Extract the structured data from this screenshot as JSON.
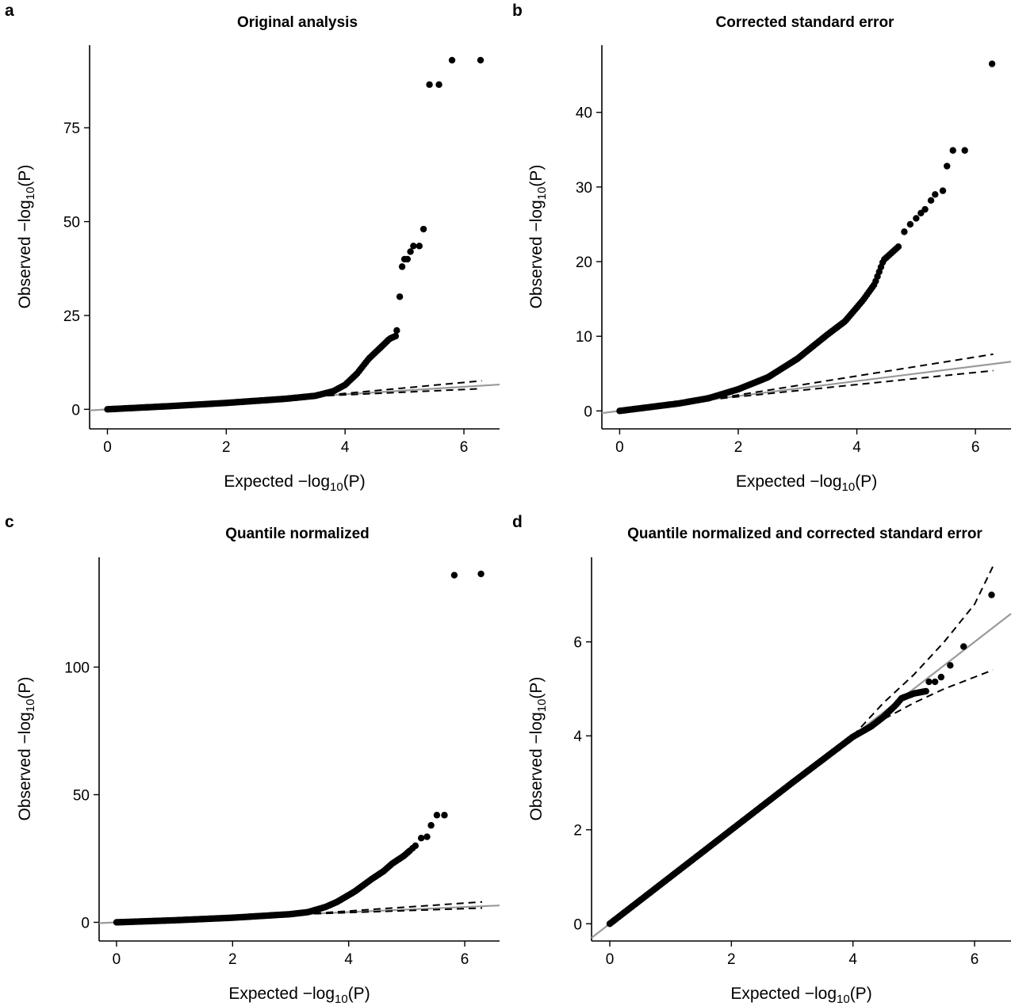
{
  "chart_data": [
    {
      "panel": "a",
      "type": "scatter",
      "title": "Original analysis",
      "xlabel": "Expected −log10(P)",
      "ylabel": "Observed −log10(P)",
      "xlim": [
        -0.3,
        6.6
      ],
      "ylim": [
        -5,
        97
      ],
      "xticks": [
        0,
        2,
        4,
        6
      ],
      "yticks": [
        0,
        25,
        50,
        75
      ],
      "reference_line": {
        "color": "#999999",
        "slope": 1
      },
      "confidence_band": {
        "style": "dashed",
        "upper": [
          [
            3.5,
            3.5
          ],
          [
            6.3,
            7.6
          ]
        ],
        "lower": [
          [
            3.5,
            3.5
          ],
          [
            6.3,
            5.5
          ]
        ]
      },
      "curve": [
        [
          0,
          0
        ],
        [
          1,
          0.8
        ],
        [
          2,
          1.7
        ],
        [
          3,
          2.8
        ],
        [
          3.5,
          3.6
        ],
        [
          3.8,
          4.8
        ],
        [
          4.0,
          6.5
        ],
        [
          4.2,
          9.5
        ],
        [
          4.4,
          13.5
        ],
        [
          4.6,
          16.5
        ],
        [
          4.75,
          18.8
        ],
        [
          4.85,
          19.5
        ]
      ],
      "points": [
        [
          4.87,
          21
        ],
        [
          4.92,
          30
        ],
        [
          4.96,
          38
        ],
        [
          5.0,
          40
        ],
        [
          5.05,
          40
        ],
        [
          5.1,
          42
        ],
        [
          5.15,
          43.5
        ],
        [
          5.25,
          43.5
        ],
        [
          5.32,
          48
        ],
        [
          5.42,
          86.5
        ],
        [
          5.58,
          86.5
        ],
        [
          5.8,
          93
        ],
        [
          6.28,
          93
        ]
      ]
    },
    {
      "panel": "b",
      "type": "scatter",
      "title": "Corrected standard error",
      "xlabel": "Expected −log10(P)",
      "ylabel": "Observed −log10(P)",
      "xlim": [
        -0.3,
        6.6
      ],
      "ylim": [
        -2.3,
        49
      ],
      "xticks": [
        0,
        2,
        4,
        6
      ],
      "yticks": [
        0,
        10,
        20,
        30,
        40
      ],
      "reference_line": {
        "color": "#999999",
        "slope": 1
      },
      "confidence_band": {
        "style": "dashed",
        "upper": [
          [
            1.5,
            1.5
          ],
          [
            6.3,
            7.6
          ]
        ],
        "lower": [
          [
            1.5,
            1.5
          ],
          [
            6.3,
            5.4
          ]
        ]
      },
      "curve": [
        [
          0,
          0
        ],
        [
          1,
          1
        ],
        [
          1.5,
          1.7
        ],
        [
          2,
          2.9
        ],
        [
          2.5,
          4.5
        ],
        [
          3,
          7
        ],
        [
          3.5,
          10.2
        ],
        [
          3.8,
          12
        ],
        [
          4.1,
          14.8
        ],
        [
          4.3,
          17
        ],
        [
          4.45,
          20.2
        ],
        [
          4.7,
          22
        ]
      ],
      "points": [
        [
          4.8,
          24
        ],
        [
          4.9,
          25
        ],
        [
          5.0,
          25.8
        ],
        [
          5.08,
          26.5
        ],
        [
          5.15,
          27
        ],
        [
          5.25,
          28.2
        ],
        [
          5.32,
          29
        ],
        [
          5.45,
          29.5
        ],
        [
          5.52,
          32.8
        ],
        [
          5.62,
          34.9
        ],
        [
          5.82,
          34.9
        ],
        [
          6.28,
          46.5
        ]
      ]
    },
    {
      "panel": "c",
      "type": "scatter",
      "title": "Quantile normalized",
      "xlabel": "Expected −log10(P)",
      "ylabel": "Observed −log10(P)",
      "xlim": [
        -0.3,
        6.6
      ],
      "ylim": [
        -7,
        143
      ],
      "xticks": [
        0,
        2,
        4,
        6
      ],
      "yticks": [
        0,
        50,
        100
      ],
      "reference_line": {
        "color": "#999999",
        "slope": 1
      },
      "confidence_band": {
        "style": "dashed",
        "upper": [
          [
            3.2,
            3.2
          ],
          [
            6.3,
            8
          ]
        ],
        "lower": [
          [
            3.2,
            3.2
          ],
          [
            6.3,
            5.6
          ]
        ]
      },
      "curve": [
        [
          0,
          0
        ],
        [
          1,
          0.8
        ],
        [
          2,
          1.8
        ],
        [
          3,
          3.2
        ],
        [
          3.3,
          4
        ],
        [
          3.6,
          6
        ],
        [
          3.8,
          8
        ],
        [
          4.1,
          12
        ],
        [
          4.4,
          17
        ],
        [
          4.6,
          20
        ],
        [
          4.75,
          23
        ],
        [
          4.95,
          26
        ],
        [
          5.05,
          28
        ]
      ],
      "points": [
        [
          5.1,
          29
        ],
        [
          5.15,
          30
        ],
        [
          5.25,
          33
        ],
        [
          5.35,
          33.5
        ],
        [
          5.42,
          38
        ],
        [
          5.52,
          42
        ],
        [
          5.65,
          42
        ],
        [
          5.82,
          136
        ],
        [
          6.28,
          136.5
        ]
      ]
    },
    {
      "panel": "d",
      "type": "scatter",
      "title": "Quantile normalized and corrected standard error",
      "xlabel": "Expected −log10(P)",
      "ylabel": "Observed −log10(P)",
      "xlim": [
        -0.3,
        6.6
      ],
      "ylim": [
        -0.35,
        7.8
      ],
      "xticks": [
        0,
        2,
        4,
        6
      ],
      "yticks": [
        0,
        2,
        4,
        6
      ],
      "reference_line": {
        "color": "#999999",
        "slope": 1
      },
      "confidence_band": {
        "style": "dashed",
        "upper": [
          [
            4.0,
            4.0
          ],
          [
            4.5,
            4.7
          ],
          [
            5.0,
            5.3
          ],
          [
            5.5,
            6.0
          ],
          [
            6.0,
            6.8
          ],
          [
            6.3,
            7.6
          ]
        ],
        "lower": [
          [
            4.0,
            4.0
          ],
          [
            4.5,
            4.35
          ],
          [
            5.0,
            4.7
          ],
          [
            5.5,
            5.0
          ],
          [
            6.0,
            5.25
          ],
          [
            6.3,
            5.4
          ]
        ]
      },
      "curve": [
        [
          0,
          0
        ],
        [
          1,
          1
        ],
        [
          2,
          2
        ],
        [
          3,
          3
        ],
        [
          4,
          3.98
        ],
        [
          4.3,
          4.2
        ],
        [
          4.5,
          4.4
        ],
        [
          4.7,
          4.65
        ],
        [
          4.8,
          4.8
        ],
        [
          5.0,
          4.9
        ],
        [
          5.2,
          4.95
        ]
      ],
      "points": [
        [
          5.25,
          5.15
        ],
        [
          5.35,
          5.15
        ],
        [
          5.45,
          5.25
        ],
        [
          5.6,
          5.5
        ],
        [
          5.82,
          5.9
        ],
        [
          6.28,
          7.0
        ]
      ]
    }
  ]
}
